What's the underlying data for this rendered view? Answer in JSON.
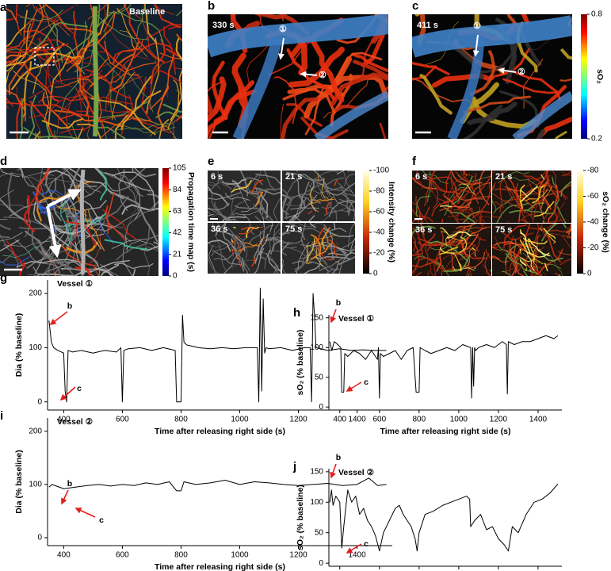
{
  "panels": {
    "a": {
      "letter": "a",
      "label": "Baseline"
    },
    "b": {
      "letter": "b",
      "time": "330 s",
      "marker1": "①",
      "marker2": "②"
    },
    "c": {
      "letter": "c",
      "time": "411 s",
      "marker1": "①",
      "marker2": "②"
    },
    "d": {
      "letter": "d"
    },
    "e": {
      "letter": "e",
      "frames": [
        "6 s",
        "21 s",
        "36 s",
        "75 s"
      ]
    },
    "f": {
      "letter": "f",
      "frames": [
        "6 s",
        "21 s",
        "36 s",
        "75 s"
      ]
    }
  },
  "colorbars": [
    {
      "label": "sO₂",
      "lim": [
        0.8,
        0.2
      ],
      "ticks": [
        0.8,
        0.2
      ]
    },
    {
      "label": "Propagation time map (s)",
      "lim": [
        105,
        0
      ],
      "ticks": [
        105,
        84,
        63,
        42,
        21,
        0
      ]
    },
    {
      "label": "Intensity change (%)",
      "lim": [
        -100,
        0
      ],
      "ticks": [
        -100,
        -80,
        -60,
        -40,
        -20,
        0
      ]
    },
    {
      "label": "sO₂ change (%)",
      "lim": [
        -80,
        0
      ],
      "ticks": [
        -80,
        -60,
        -40,
        -20,
        0
      ]
    }
  ],
  "chart_data": [
    {
      "type": "line",
      "letter": "g",
      "title": "Vessel ①",
      "xlabel": "Time after releasing right side (s)",
      "ylabel": "Dia (% baseline)",
      "color": "#000000",
      "annotation_color": "#e02020",
      "annotations": [
        "b",
        "c"
      ],
      "xlim": [
        345,
        1520
      ],
      "ylim": [
        -15,
        225
      ],
      "xticks": [
        400,
        600,
        800,
        1000,
        1200,
        1400
      ],
      "yticks": [
        0,
        100,
        200
      ],
      "x": [
        350,
        358,
        366,
        380,
        400,
        405,
        410,
        415,
        430,
        460,
        500,
        540,
        580,
        595,
        600,
        605,
        620,
        660,
        700,
        740,
        780,
        785,
        800,
        805,
        810,
        820,
        860,
        900,
        940,
        980,
        1020,
        1060,
        1065,
        1070,
        1075,
        1080,
        1085,
        1090,
        1100,
        1140,
        1180,
        1220,
        1240,
        1245,
        1250,
        1255,
        1260,
        1300,
        1340,
        1380,
        1420,
        1460,
        1500
      ],
      "values": [
        150,
        110,
        100,
        95,
        90,
        20,
        0,
        95,
        92,
        95,
        90,
        95,
        92,
        100,
        0,
        95,
        98,
        100,
        95,
        100,
        95,
        0,
        0,
        160,
        110,
        105,
        100,
        98,
        100,
        98,
        100,
        100,
        0,
        210,
        20,
        190,
        90,
        100,
        98,
        100,
        95,
        100,
        100,
        0,
        200,
        160,
        100,
        95,
        98,
        95,
        96,
        95,
        95
      ]
    },
    {
      "type": "line",
      "letter": "h",
      "title": "Vessel ①",
      "xlabel": "Time after releasing right side (s)",
      "ylabel": "sO₂ (% baseline)",
      "color": "#000000",
      "annotation_color": "#e02020",
      "annotations": [
        "b",
        "c"
      ],
      "xlim": [
        345,
        1520
      ],
      "ylim": [
        -5,
        155
      ],
      "xticks": [
        400,
        600,
        800,
        1000,
        1200,
        1400
      ],
      "yticks": [
        0,
        50,
        100,
        150
      ],
      "x": [
        350,
        360,
        372,
        390,
        405,
        410,
        420,
        425,
        440,
        470,
        500,
        530,
        560,
        590,
        595,
        600,
        605,
        620,
        650,
        680,
        710,
        740,
        770,
        785,
        800,
        805,
        830,
        860,
        900,
        940,
        980,
        1020,
        1060,
        1065,
        1070,
        1075,
        1080,
        1085,
        1100,
        1140,
        1180,
        1220,
        1240,
        1245,
        1250,
        1280,
        1320,
        1360,
        1400,
        1440,
        1480,
        1500
      ],
      "values": [
        110,
        95,
        110,
        105,
        100,
        25,
        25,
        90,
        85,
        95,
        90,
        80,
        95,
        80,
        100,
        15,
        90,
        85,
        90,
        95,
        80,
        95,
        100,
        25,
        25,
        100,
        95,
        90,
        95,
        100,
        95,
        105,
        100,
        15,
        100,
        35,
        100,
        95,
        100,
        105,
        100,
        110,
        105,
        22,
        110,
        105,
        110,
        110,
        115,
        120,
        115,
        120
      ]
    },
    {
      "type": "line",
      "letter": "i",
      "title": "Vessel ②",
      "xlabel": "Time after releasing right side (s)",
      "ylabel": "Dia (% baseline)",
      "color": "#000000",
      "annotation_color": "#e02020",
      "annotations": [
        "b",
        "c"
      ],
      "xlim": [
        345,
        1520
      ],
      "ylim": [
        -15,
        225
      ],
      "xticks": [
        400,
        600,
        800,
        1000,
        1200,
        1400
      ],
      "yticks": [
        0,
        100,
        200
      ],
      "x": [
        350,
        360,
        400,
        440,
        480,
        520,
        560,
        600,
        640,
        680,
        720,
        760,
        785,
        800,
        810,
        850,
        900,
        950,
        1000,
        1050,
        1100,
        1150,
        1200,
        1250,
        1300,
        1350,
        1400,
        1440,
        1470,
        1500
      ],
      "values": [
        95,
        100,
        92,
        95,
        98,
        100,
        97,
        100,
        98,
        103,
        100,
        105,
        88,
        88,
        105,
        100,
        103,
        108,
        100,
        105,
        103,
        100,
        98,
        100,
        102,
        98,
        100,
        112,
        98,
        100
      ]
    },
    {
      "type": "line",
      "letter": "j",
      "title": "Vessel ②",
      "xlabel": "Time after releasing right side (s)",
      "ylabel": "sO₂ (% baseline)",
      "color": "#000000",
      "annotation_color": "#e02020",
      "annotations": [
        "b",
        "c"
      ],
      "xlim": [
        345,
        1520
      ],
      "ylim": [
        -5,
        155
      ],
      "xticks": [
        400,
        600,
        800,
        1000,
        1200,
        1400
      ],
      "yticks": [
        0,
        50,
        100,
        150
      ],
      "x": [
        350,
        358,
        366,
        380,
        400,
        410,
        420,
        440,
        460,
        480,
        500,
        520,
        540,
        560,
        580,
        600,
        620,
        650,
        680,
        700,
        720,
        740,
        760,
        780,
        790,
        800,
        830,
        870,
        920,
        960,
        1000,
        1040,
        1055,
        1060,
        1080,
        1110,
        1140,
        1170,
        1200,
        1230,
        1250,
        1270,
        1300,
        1340,
        1380,
        1420,
        1460,
        1500
      ],
      "values": [
        100,
        120,
        95,
        110,
        100,
        25,
        60,
        120,
        100,
        110,
        80,
        90,
        70,
        60,
        45,
        20,
        50,
        70,
        90,
        95,
        80,
        70,
        60,
        40,
        20,
        50,
        80,
        85,
        95,
        100,
        105,
        110,
        105,
        60,
        70,
        80,
        55,
        60,
        40,
        30,
        20,
        60,
        50,
        80,
        100,
        105,
        115,
        130
      ]
    }
  ]
}
